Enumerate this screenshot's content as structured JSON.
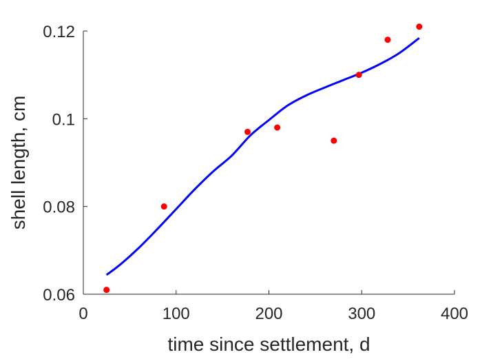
{
  "chart_data": {
    "type": "scatter",
    "title": "",
    "xlabel": "time since settlement, d",
    "ylabel": "shell length, cm",
    "xlim": [
      0,
      400
    ],
    "ylim": [
      0.06,
      0.12
    ],
    "x_ticks": [
      0,
      100,
      200,
      300,
      400
    ],
    "x_tick_labels": [
      "0",
      "100",
      "200",
      "300",
      "400"
    ],
    "y_ticks": [
      0.06,
      0.08,
      0.1,
      0.12
    ],
    "y_tick_labels": [
      "0.06",
      "0.08",
      "0.1",
      "0.12"
    ],
    "grid": false,
    "legend": "none",
    "series": [
      {
        "kind": "points",
        "color": "#ff0000",
        "x": [
          25,
          87,
          177,
          209,
          270,
          297,
          328,
          362
        ],
        "y": [
          0.061,
          0.08,
          0.097,
          0.098,
          0.095,
          0.11,
          0.118,
          0.121
        ]
      },
      {
        "kind": "fitted-curve",
        "color": "#0000ff",
        "x": [
          25,
          40,
          60,
          80,
          100,
          120,
          140,
          160,
          180,
          200,
          220,
          240,
          260,
          280,
          300,
          320,
          340,
          362
        ],
        "y": [
          0.0644,
          0.0668,
          0.0706,
          0.0749,
          0.0794,
          0.0839,
          0.088,
          0.0916,
          0.0962,
          0.0997,
          0.103,
          0.1053,
          0.1071,
          0.1088,
          0.1105,
          0.1125,
          0.1149,
          0.1184
        ]
      }
    ]
  }
}
